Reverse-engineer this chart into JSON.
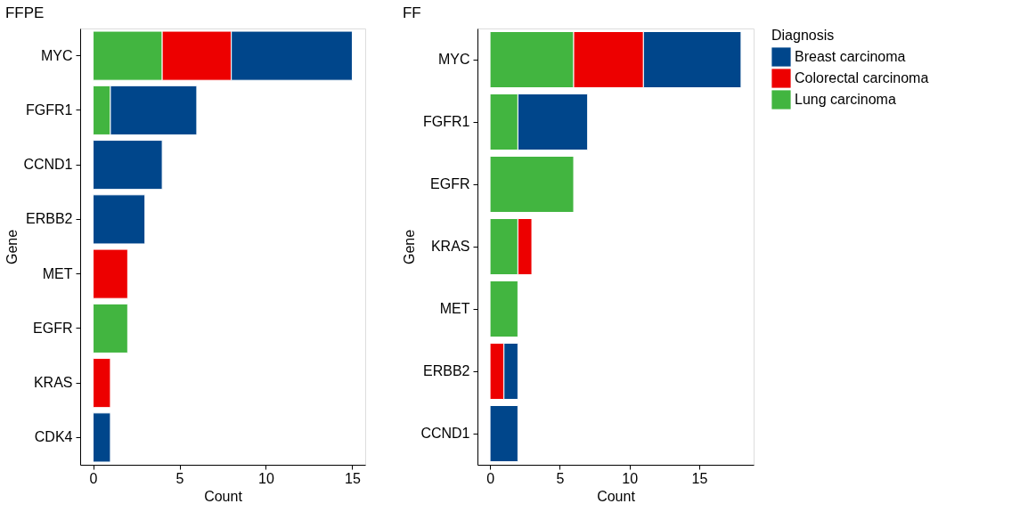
{
  "chart_data": [
    {
      "type": "bar",
      "orientation": "horizontal",
      "stacked": true,
      "title": "FFPE",
      "xlabel": "Count",
      "ylabel": "Gene",
      "categories": [
        "MYC",
        "FGFR1",
        "CCND1",
        "ERBB2",
        "MET",
        "EGFR",
        "KRAS",
        "CDK4"
      ],
      "series": [
        {
          "color": "#42b540",
          "values": [
            4,
            1,
            0,
            0,
            0,
            2,
            0,
            0
          ]
        },
        {
          "color": "#ed0000",
          "values": [
            4,
            0,
            0,
            0,
            2,
            0,
            1,
            0
          ]
        },
        {
          "color": "#00468b",
          "values": [
            7,
            5,
            4,
            3,
            0,
            0,
            0,
            1
          ]
        }
      ],
      "xlim": [
        -0.75,
        15.75
      ],
      "xticks": [
        0,
        5,
        10,
        15
      ]
    },
    {
      "type": "bar",
      "orientation": "horizontal",
      "stacked": true,
      "title": "FF",
      "xlabel": "Count",
      "ylabel": "Gene",
      "legend_title": "Diagnosis",
      "categories": [
        "MYC",
        "FGFR1",
        "EGFR",
        "KRAS",
        "MET",
        "ERBB2",
        "CCND1"
      ],
      "series": [
        {
          "name": "Lung carcinoma",
          "color": "#42b540",
          "values": [
            6,
            2,
            6,
            2,
            2,
            0,
            0
          ]
        },
        {
          "name": "Colorectal carcinoma",
          "color": "#ed0000",
          "values": [
            5,
            0,
            0,
            1,
            0,
            1,
            0
          ]
        },
        {
          "name": "Breast carcinoma",
          "color": "#00468b",
          "values": [
            7,
            5,
            0,
            0,
            0,
            1,
            2
          ]
        }
      ],
      "xlim": [
        -0.9,
        18.9
      ],
      "xticks": [
        0,
        5,
        10,
        15
      ],
      "grid": false,
      "legend": "right"
    }
  ]
}
